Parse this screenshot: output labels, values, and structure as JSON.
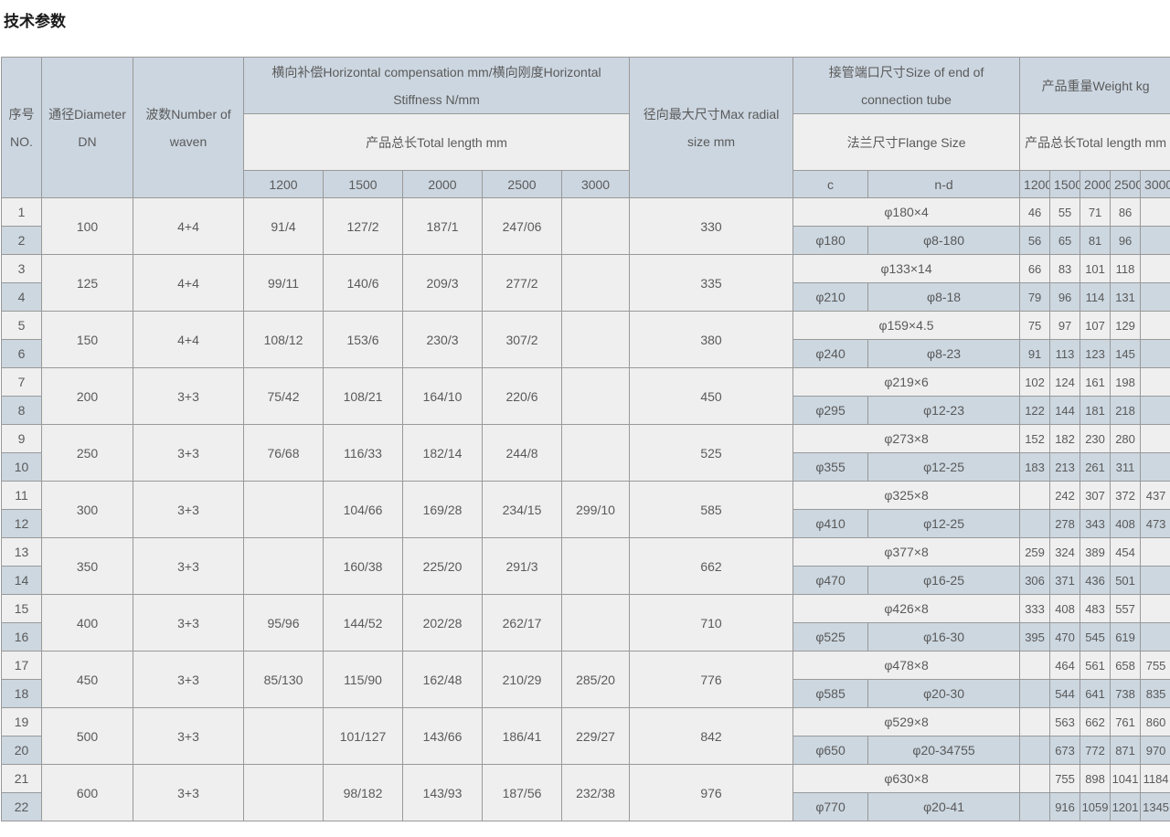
{
  "page": {
    "title": "技术参数"
  },
  "table": {
    "headers": {
      "no": "序号\nNO.",
      "dn": "通径Diameter\nDN",
      "waves": "波数Number of\nwaven",
      "comp": "横向补偿Horizontal compensation mm/横向刚度Horizontal Stiffness N/mm",
      "total_length_comp": "产品总长Total length mm",
      "radial": "径向最大尺寸Max radial size mm",
      "conn": "接管端口尺寸Size of end of connection tube",
      "flange": "法兰尺寸Flange Size",
      "weight": "产品重量Weight kg",
      "total_length_weight": "产品总长Total length mm",
      "c": "c",
      "nd": "n-d",
      "lengths": [
        "1200",
        "1500",
        "2000",
        "2500",
        "3000"
      ]
    },
    "pairs": [
      {
        "no_odd": "1",
        "no_even": "2",
        "dn": "100",
        "waves": "4+4",
        "comp": [
          "91/4",
          "127/2",
          "187/1",
          "247/06",
          ""
        ],
        "radial": "330",
        "tube": "φ180×4",
        "c": "φ180",
        "nd": "φ8-180",
        "w_odd": [
          "46",
          "55",
          "71",
          "86",
          ""
        ],
        "w_even": [
          "56",
          "65",
          "81",
          "96",
          ""
        ]
      },
      {
        "no_odd": "3",
        "no_even": "4",
        "dn": "125",
        "waves": "4+4",
        "comp": [
          "99/11",
          "140/6",
          "209/3",
          "277/2",
          ""
        ],
        "radial": "335",
        "tube": "φ133×14",
        "c": "φ210",
        "nd": "φ8-18",
        "w_odd": [
          "66",
          "83",
          "101",
          "118",
          ""
        ],
        "w_even": [
          "79",
          "96",
          "114",
          "131",
          ""
        ]
      },
      {
        "no_odd": "5",
        "no_even": "6",
        "dn": "150",
        "waves": "4+4",
        "comp": [
          "108/12",
          "153/6",
          "230/3",
          "307/2",
          ""
        ],
        "radial": "380",
        "tube": "φ159×4.5",
        "c": "φ240",
        "nd": "φ8-23",
        "w_odd": [
          "75",
          "97",
          "107",
          "129",
          ""
        ],
        "w_even": [
          "91",
          "113",
          "123",
          "145",
          ""
        ]
      },
      {
        "no_odd": "7",
        "no_even": "8",
        "dn": "200",
        "waves": "3+3",
        "comp": [
          "75/42",
          "108/21",
          "164/10",
          "220/6",
          ""
        ],
        "radial": "450",
        "tube": "φ219×6",
        "c": "φ295",
        "nd": "φ12-23",
        "w_odd": [
          "102",
          "124",
          "161",
          "198",
          ""
        ],
        "w_even": [
          "122",
          "144",
          "181",
          "218",
          ""
        ]
      },
      {
        "no_odd": "9",
        "no_even": "10",
        "dn": "250",
        "waves": "3+3",
        "comp": [
          "76/68",
          "116/33",
          "182/14",
          "244/8",
          ""
        ],
        "radial": "525",
        "tube": "φ273×8",
        "c": "φ355",
        "nd": "φ12-25",
        "w_odd": [
          "152",
          "182",
          "230",
          "280",
          ""
        ],
        "w_even": [
          "183",
          "213",
          "261",
          "311",
          ""
        ]
      },
      {
        "no_odd": "11",
        "no_even": "12",
        "dn": "300",
        "waves": "3+3",
        "comp": [
          "",
          "104/66",
          "169/28",
          "234/15",
          "299/10"
        ],
        "radial": "585",
        "tube": "φ325×8",
        "c": "φ410",
        "nd": "φ12-25",
        "w_odd": [
          "",
          "242",
          "307",
          "372",
          "437"
        ],
        "w_even": [
          "",
          "278",
          "343",
          "408",
          "473"
        ]
      },
      {
        "no_odd": "13",
        "no_even": "14",
        "dn": "350",
        "waves": "3+3",
        "comp": [
          "",
          "160/38",
          "225/20",
          "291/3",
          ""
        ],
        "radial": "662",
        "tube": "φ377×8",
        "c": "φ470",
        "nd": "φ16-25",
        "w_odd": [
          "259",
          "324",
          "389",
          "454",
          ""
        ],
        "w_even": [
          "306",
          "371",
          "436",
          "501",
          ""
        ]
      },
      {
        "no_odd": "15",
        "no_even": "16",
        "dn": "400",
        "waves": "3+3",
        "comp": [
          "95/96",
          "144/52",
          "202/28",
          "262/17",
          ""
        ],
        "radial": "710",
        "tube": "φ426×8",
        "c": "φ525",
        "nd": "φ16-30",
        "w_odd": [
          "333",
          "408",
          "483",
          "557",
          ""
        ],
        "w_even": [
          "395",
          "470",
          "545",
          "619",
          ""
        ]
      },
      {
        "no_odd": "17",
        "no_even": "18",
        "dn": "450",
        "waves": "3+3",
        "comp": [
          "85/130",
          "115/90",
          "162/48",
          "210/29",
          "285/20"
        ],
        "radial": "776",
        "tube": "φ478×8",
        "c": "φ585",
        "nd": "φ20-30",
        "w_odd": [
          "",
          "464",
          "561",
          "658",
          "755"
        ],
        "w_even": [
          "",
          "544",
          "641",
          "738",
          "835"
        ]
      },
      {
        "no_odd": "19",
        "no_even": "20",
        "dn": "500",
        "waves": "3+3",
        "comp": [
          "",
          "101/127",
          "143/66",
          "186/41",
          "229/27"
        ],
        "radial": "842",
        "tube": "φ529×8",
        "c": "φ650",
        "nd": "φ20-34755",
        "w_odd": [
          "",
          "563",
          "662",
          "761",
          "860"
        ],
        "w_even": [
          "",
          "673",
          "772",
          "871",
          "970"
        ]
      },
      {
        "no_odd": "21",
        "no_even": "22",
        "dn": "600",
        "waves": "3+3",
        "comp": [
          "",
          "98/182",
          "143/93",
          "187/56",
          "232/38"
        ],
        "radial": "976",
        "tube": "φ630×8",
        "c": "φ770",
        "nd": "φ20-41",
        "w_odd": [
          "",
          "755",
          "898",
          "1041",
          "1184"
        ],
        "w_even": [
          "",
          "916",
          "1059",
          "1201",
          "1345"
        ]
      }
    ]
  }
}
